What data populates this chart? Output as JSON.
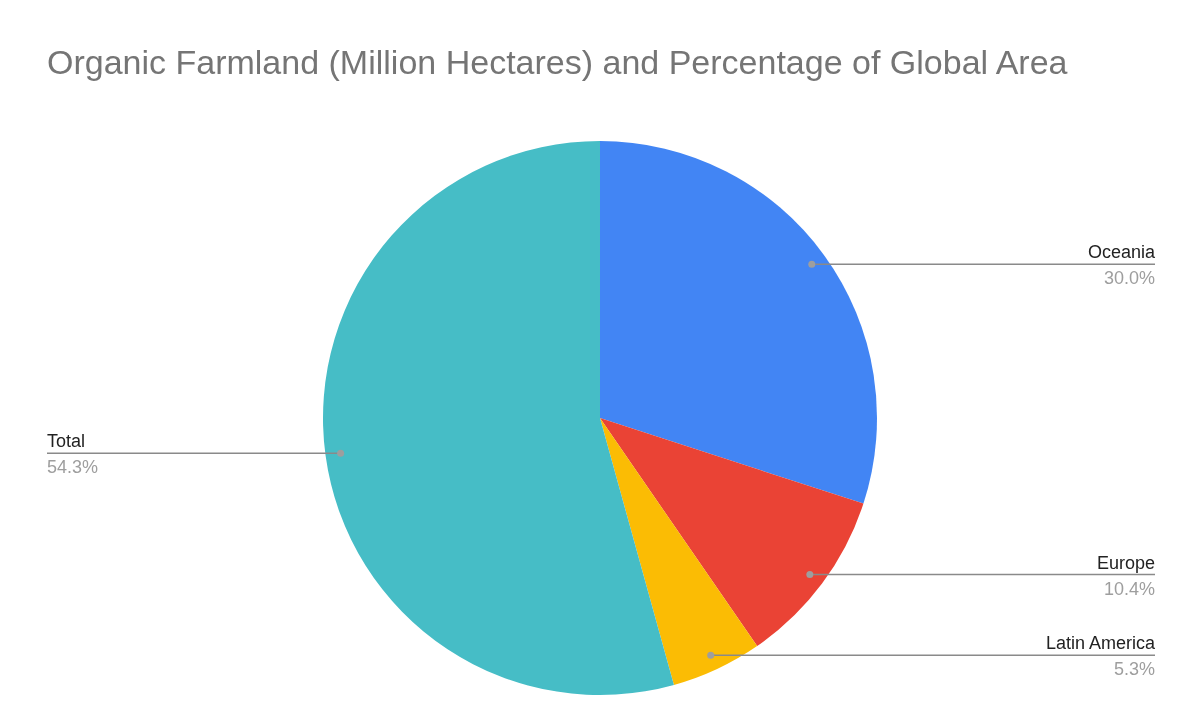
{
  "chart_data": {
    "type": "pie",
    "title": "Organic Farmland (Million Hectares) and Percentage of Global Area",
    "categories": [
      "Oceania",
      "Europe",
      "Latin America",
      "Total"
    ],
    "values": [
      30.0,
      10.4,
      5.3,
      54.3
    ],
    "colors": [
      "#4285f4",
      "#ea4335",
      "#fbbc04",
      "#46bdc6"
    ],
    "value_labels": [
      "30.0%",
      "10.4%",
      "5.3%",
      "54.3%"
    ],
    "legend": false
  }
}
